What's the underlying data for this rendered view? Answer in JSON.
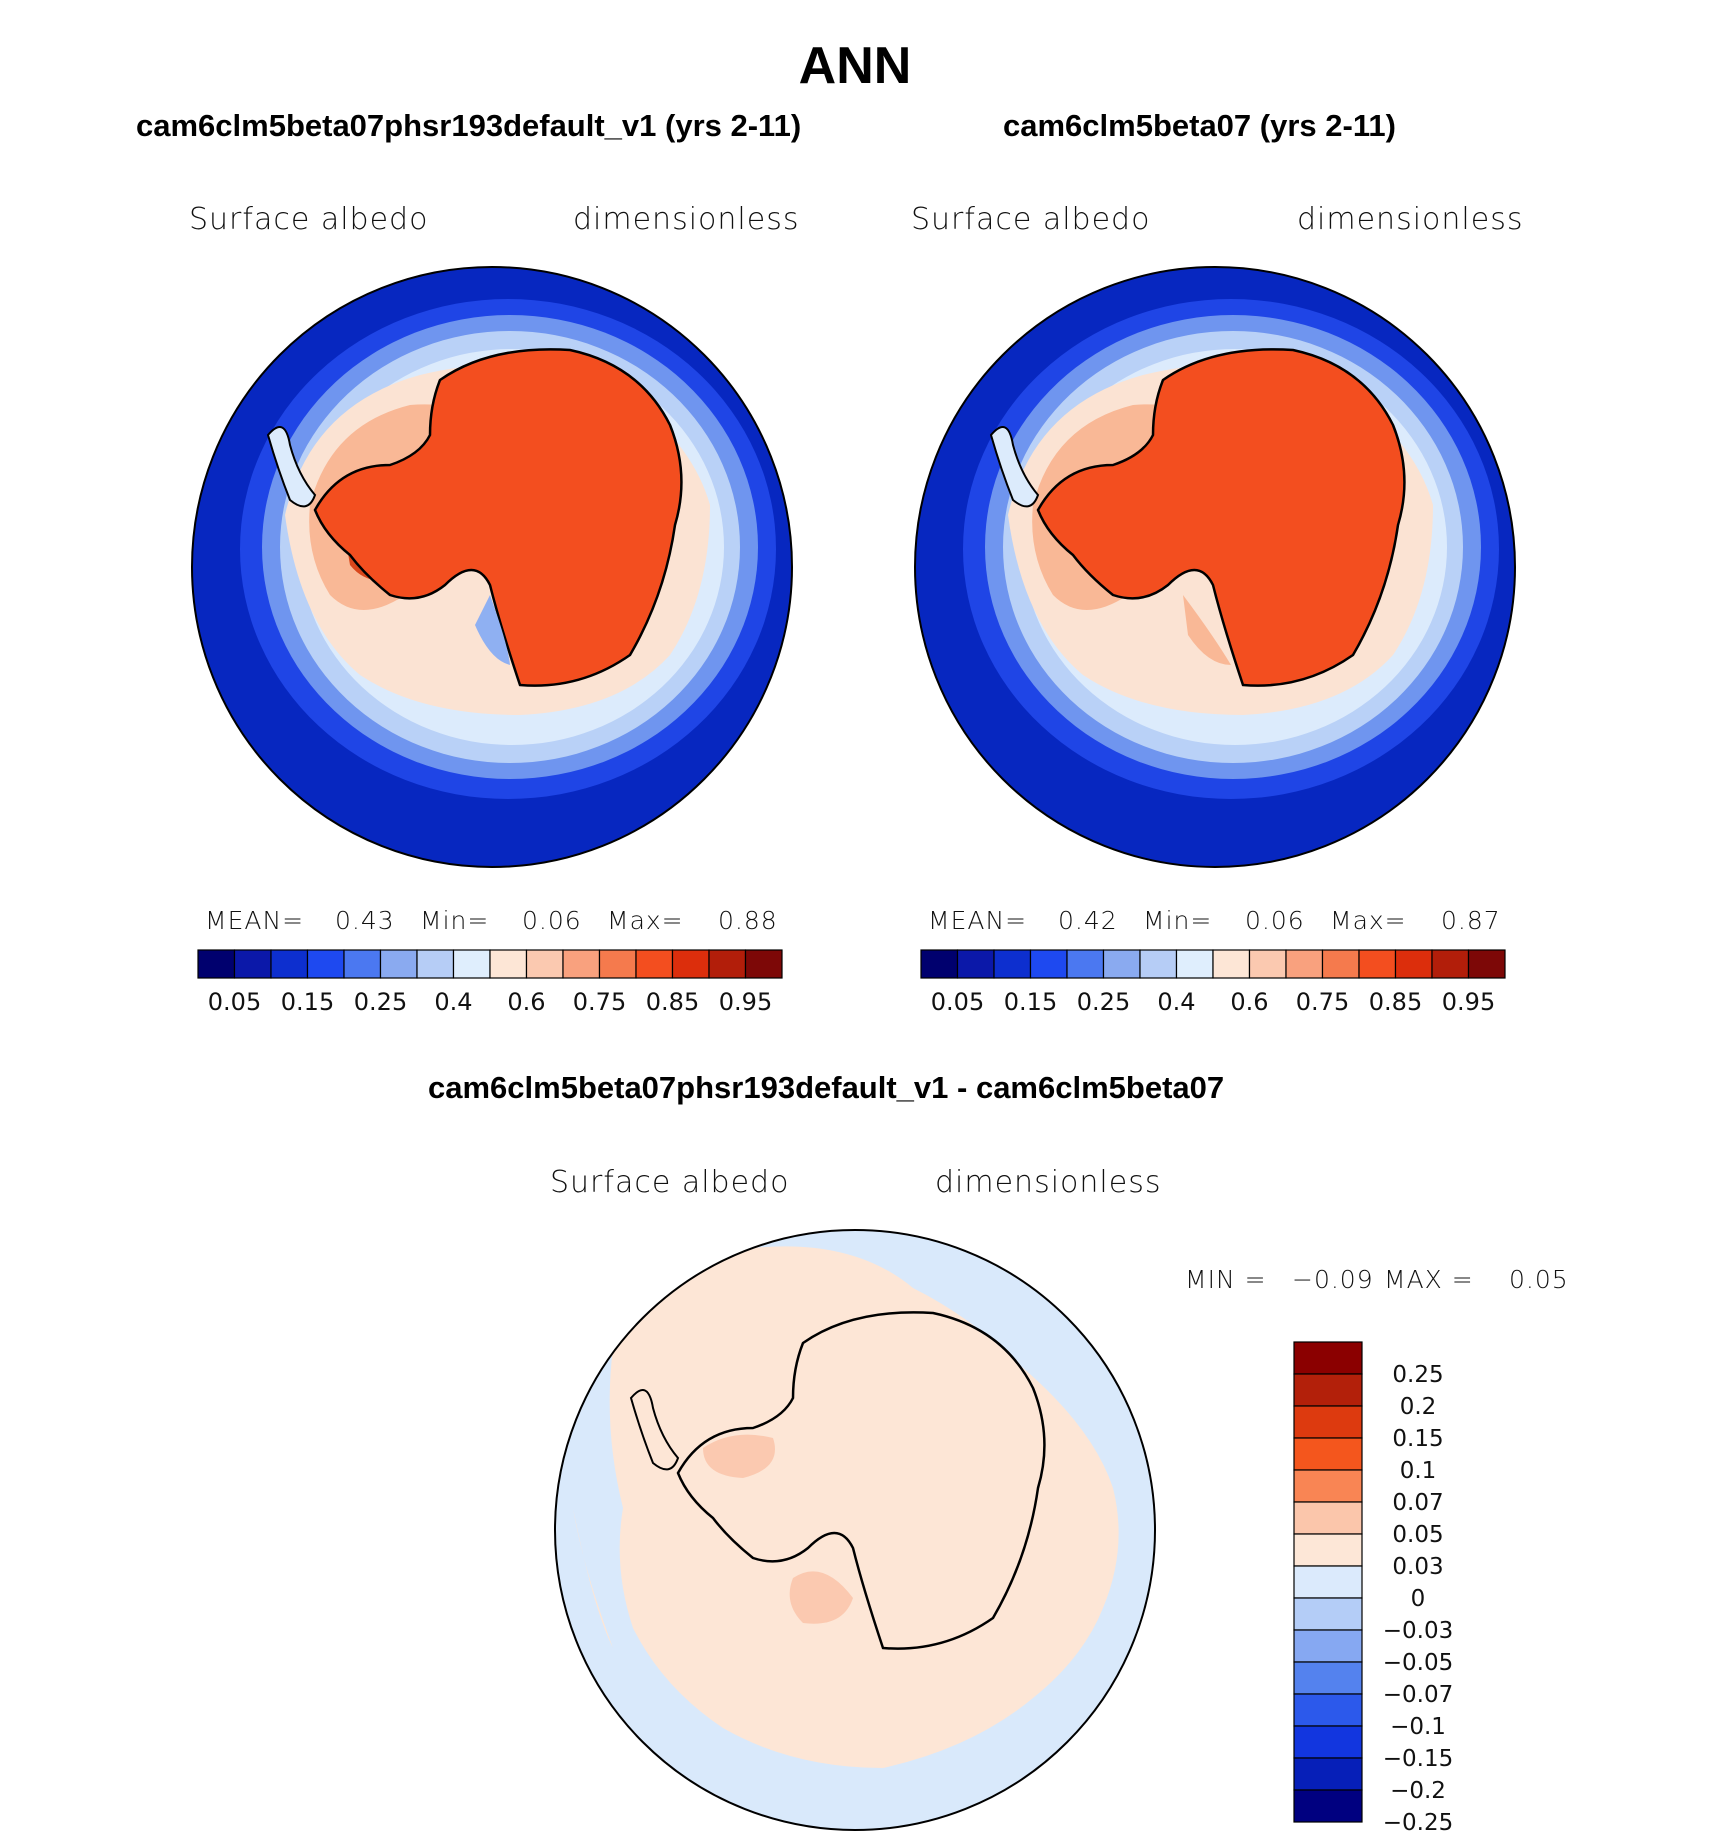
{
  "figure": {
    "season": "ANN",
    "colors": {
      "ocean_deep": "#0727c0",
      "ice_red": "#f34e1f",
      "peach": "#fde6d6",
      "light_blue": "#d9e9fb"
    }
  },
  "panels": {
    "left": {
      "title": "cam6clm5beta07phsr193default_v1 (yrs 2-11)",
      "variable": "Surface albedo",
      "units": "dimensionless",
      "stats": {
        "mean_label": "MEAN=",
        "mean": "0.43",
        "min_label": "Min=",
        "min": "0.06",
        "max_label": "Max=",
        "max": "0.88"
      }
    },
    "right": {
      "title": "cam6clm5beta07 (yrs 2-11)",
      "variable": "Surface albedo",
      "units": "dimensionless",
      "stats": {
        "mean_label": "MEAN=",
        "mean": "0.42",
        "min_label": "Min=",
        "min": "0.06",
        "max_label": "Max=",
        "max": "0.87"
      }
    },
    "diff": {
      "title": "cam6clm5beta07phsr193default_v1 - cam6clm5beta07",
      "variable": "Surface albedo",
      "units": "dimensionless",
      "stats": {
        "min_label": "MIN =",
        "min": "−0.09",
        "max_label": "MAX =",
        "max": "0.05"
      }
    }
  },
  "colorbars": {
    "abs": {
      "colors": [
        "#00006e",
        "#0b18a9",
        "#0d2fcf",
        "#1e49f0",
        "#4b78f1",
        "#8aaaf0",
        "#b6cdf6",
        "#dfeefd",
        "#fde6d6",
        "#fbc9b0",
        "#f9a17e",
        "#f57a4d",
        "#f34e1f",
        "#dc2e0c",
        "#b21e0a",
        "#7d0807"
      ],
      "labels": [
        "0.05",
        "0.15",
        "0.25",
        "0.4",
        "0.6",
        "0.75",
        "0.85",
        "0.95"
      ]
    },
    "diff": {
      "colors": [
        "#8b0000",
        "#b3200a",
        "#dd3a0f",
        "#f4561d",
        "#f98554",
        "#fbc6ab",
        "#fde7d7",
        "#dbeafc",
        "#b4cdf7",
        "#86a8f2",
        "#5482ee",
        "#2c59eb",
        "#1236df",
        "#061fb8",
        "#000080"
      ],
      "labels": [
        "0.25",
        "0.2",
        "0.15",
        "0.1",
        "0.07",
        "0.05",
        "0.03",
        "0",
        "−0.03",
        "−0.05",
        "−0.07",
        "−0.1",
        "−0.15",
        "−0.2",
        "−0.25"
      ]
    }
  }
}
